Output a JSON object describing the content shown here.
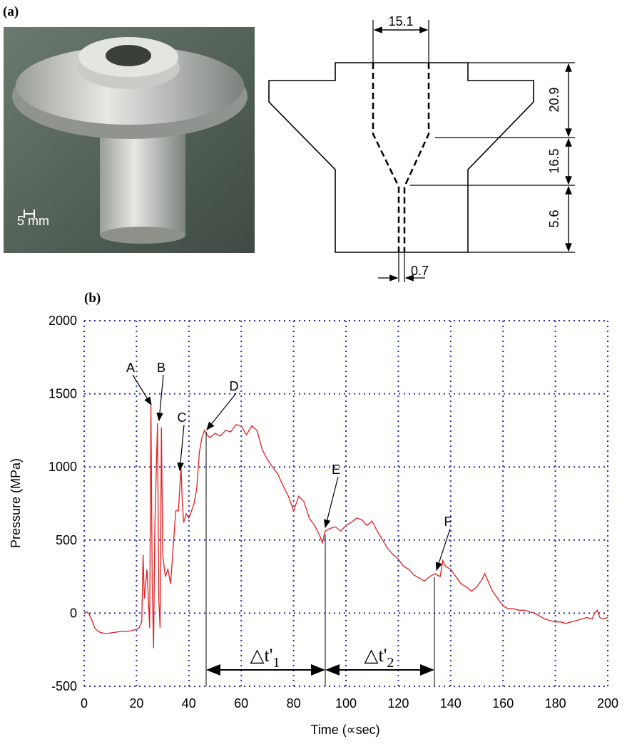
{
  "panel_a": {
    "label": "(a)",
    "scale_bar": "5 mm",
    "dimensions": {
      "top_width": "15.1",
      "upper_height": "20.9",
      "middle_height": "16.5",
      "lower_height": "5.6",
      "hole": "0.7"
    }
  },
  "chart_data": {
    "type": "line",
    "panel_label": "(b)",
    "x_label": "Time (∝sec)",
    "y_label": "Pressure (MPa)",
    "xlim": [
      0,
      200
    ],
    "ylim": [
      -500,
      2000
    ],
    "xticks": [
      0,
      20,
      40,
      60,
      80,
      100,
      120,
      140,
      160,
      180,
      200
    ],
    "yticks": [
      -500,
      0,
      500,
      1000,
      1500,
      2000
    ],
    "grid": true,
    "color": "#e02020",
    "x": [
      0,
      1,
      2,
      3,
      4,
      5,
      6,
      8,
      10,
      12,
      14,
      16,
      18,
      20,
      21,
      22,
      22.5,
      23,
      24,
      25,
      25.5,
      26,
      26.5,
      27,
      28,
      28.5,
      29,
      29.5,
      30,
      31,
      32,
      33,
      34,
      35,
      36,
      37,
      37.5,
      38,
      39,
      40,
      41,
      42,
      43,
      44,
      45,
      46,
      47,
      48,
      50,
      52,
      54,
      56,
      58,
      60,
      62,
      64,
      66,
      68,
      70,
      72,
      74,
      76,
      78,
      80,
      82,
      84,
      86,
      88,
      90,
      91,
      92,
      94,
      96,
      98,
      100,
      102,
      104,
      106,
      108,
      110,
      112,
      114,
      116,
      118,
      120,
      122,
      124,
      126,
      128,
      130,
      132,
      134,
      136,
      137,
      138,
      140,
      142,
      144,
      146,
      148,
      150,
      152,
      153,
      154,
      156,
      158,
      160,
      162,
      164,
      166,
      168,
      170,
      172,
      174,
      176,
      178,
      180,
      182,
      184,
      186,
      188,
      190,
      192,
      194,
      195,
      196,
      197,
      198,
      200
    ],
    "values": [
      0,
      10,
      -10,
      -50,
      -100,
      -120,
      -130,
      -140,
      -135,
      -130,
      -125,
      -125,
      -120,
      -110,
      -100,
      -60,
      400,
      100,
      300,
      -100,
      1420,
      200,
      -240,
      600,
      1300,
      100,
      -100,
      1270,
      400,
      250,
      300,
      200,
      450,
      700,
      700,
      1000,
      750,
      620,
      680,
      650,
      700,
      750,
      850,
      1100,
      1200,
      1250,
      1220,
      1200,
      1230,
      1210,
      1250,
      1240,
      1290,
      1280,
      1220,
      1280,
      1250,
      1120,
      1050,
      1000,
      950,
      870,
      800,
      700,
      800,
      760,
      650,
      600,
      530,
      480,
      560,
      580,
      590,
      560,
      600,
      620,
      650,
      640,
      600,
      630,
      560,
      500,
      440,
      400,
      370,
      320,
      300,
      260,
      240,
      220,
      250,
      270,
      250,
      360,
      320,
      300,
      250,
      200,
      180,
      150,
      180,
      230,
      270,
      230,
      150,
      100,
      50,
      30,
      30,
      20,
      20,
      10,
      0,
      -20,
      -40,
      -50,
      -60,
      -60,
      -70,
      -60,
      -50,
      -40,
      -30,
      -40,
      0,
      20,
      -30,
      -40,
      -30
    ],
    "annotations": [
      "A",
      "B",
      "C",
      "D",
      "E",
      "F"
    ],
    "intervals": [
      {
        "text": "△t'",
        "sub": "1"
      },
      {
        "text": "△t'",
        "sub": "2"
      }
    ]
  }
}
